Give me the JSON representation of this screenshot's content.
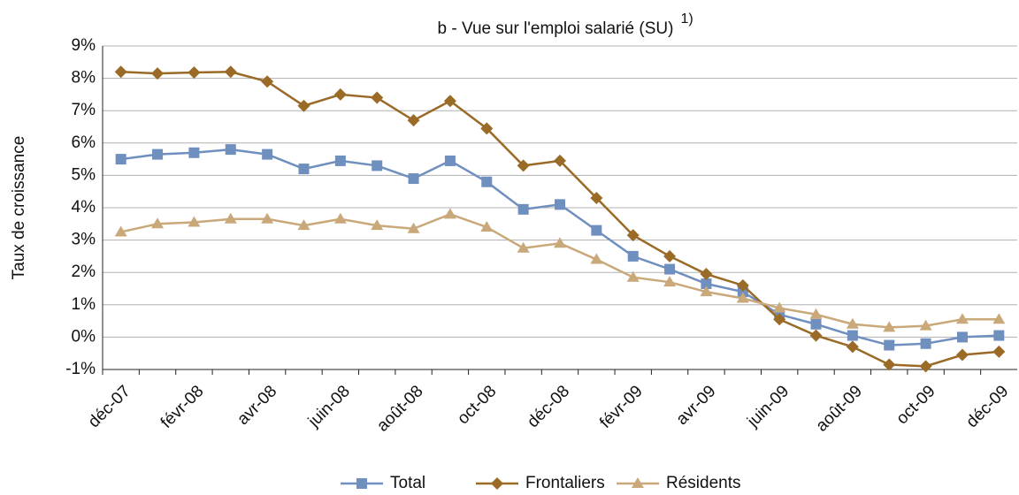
{
  "chart_data": {
    "type": "line",
    "title": "b - Vue sur l'emploi salarié   (SU)",
    "title_note": "1)",
    "y_label": "Taux de croissance",
    "categories": [
      "déc-07",
      null,
      "févr-08",
      null,
      "avr-08",
      null,
      "juin-08",
      null,
      "août-08",
      null,
      "oct-08",
      null,
      "déc-08",
      null,
      "févr-09",
      null,
      "avr-09",
      null,
      "juin-09",
      null,
      "août-09",
      null,
      "oct-09",
      null,
      "déc-09"
    ],
    "series": [
      {
        "name": "Total",
        "color": "#6f8fbf",
        "marker": "square",
        "values": [
          5.5,
          5.65,
          5.7,
          5.8,
          5.65,
          5.2,
          5.45,
          5.3,
          4.9,
          5.45,
          4.8,
          3.95,
          4.1,
          3.3,
          2.5,
          2.1,
          1.65,
          1.4,
          0.7,
          0.4,
          0.05,
          -0.25,
          -0.2,
          0.0,
          0.05
        ]
      },
      {
        "name": "Frontaliers",
        "color": "#9a6a27",
        "marker": "diamond",
        "values": [
          8.2,
          8.15,
          8.18,
          8.2,
          7.9,
          7.15,
          7.5,
          7.4,
          6.7,
          7.3,
          6.45,
          5.3,
          5.45,
          4.3,
          3.15,
          2.5,
          1.95,
          1.6,
          0.55,
          0.05,
          -0.3,
          -0.85,
          -0.9,
          -0.55,
          -0.45
        ]
      },
      {
        "name": "Résidents",
        "color": "#c9a87a",
        "marker": "triangle",
        "values": [
          3.25,
          3.5,
          3.55,
          3.65,
          3.65,
          3.45,
          3.65,
          3.45,
          3.35,
          3.8,
          3.4,
          2.75,
          2.9,
          2.4,
          1.85,
          1.7,
          1.4,
          1.2,
          0.9,
          0.7,
          0.4,
          0.3,
          0.35,
          0.55,
          0.55
        ]
      }
    ],
    "ylim": [
      -1,
      9
    ],
    "yticks": [
      {
        "value": -1,
        "label": "-1%"
      },
      {
        "value": 0,
        "label": "0%"
      },
      {
        "value": 1,
        "label": "1%"
      },
      {
        "value": 2,
        "label": "2%"
      },
      {
        "value": 3,
        "label": "3%"
      },
      {
        "value": 4,
        "label": "4%"
      },
      {
        "value": 5,
        "label": "5%"
      },
      {
        "value": 6,
        "label": "6%"
      },
      {
        "value": 7,
        "label": "7%"
      },
      {
        "value": 8,
        "label": "8%"
      },
      {
        "value": 9,
        "label": "9%"
      }
    ],
    "grid": true,
    "legend": "bottom"
  }
}
